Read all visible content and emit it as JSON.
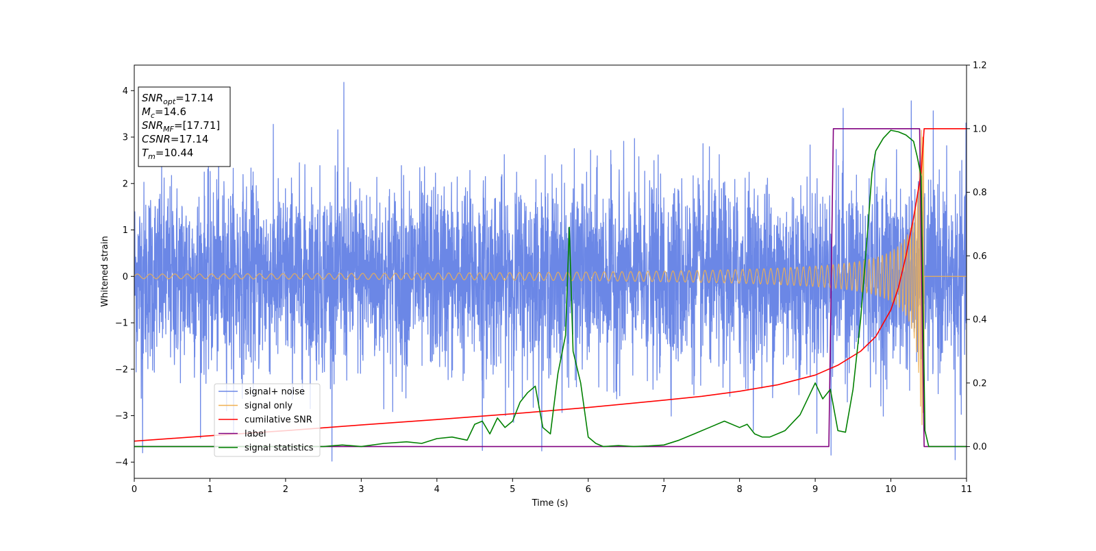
{
  "chart_data": {
    "type": "line",
    "title": "",
    "xlabel": "Time (s)",
    "ylabel": "Whitened strain",
    "xlim": [
      0,
      11
    ],
    "ylim": [
      -4.35,
      4.55
    ],
    "ylim_right": [
      -0.1,
      1.2
    ],
    "x_ticks": [
      0,
      1,
      2,
      3,
      4,
      5,
      6,
      7,
      8,
      9,
      10,
      11
    ],
    "x_tick_labels": [
      "0",
      "1",
      "2",
      "3",
      "4",
      "5",
      "6",
      "7",
      "8",
      "9",
      "10",
      "11"
    ],
    "y_ticks": [
      -4,
      -3,
      -2,
      -1,
      0,
      1,
      2,
      3,
      4
    ],
    "y_tick_labels": [
      "−4",
      "−3",
      "−2",
      "−1",
      "0",
      "1",
      "2",
      "3",
      "4"
    ],
    "y_ticks_right": [
      0.0,
      0.2,
      0.4,
      0.6,
      0.8,
      1.0,
      1.2
    ],
    "y_tick_labels_right": [
      "0.0",
      "0.2",
      "0.4",
      "0.6",
      "0.8",
      "1.0",
      "1.2"
    ],
    "grid": false,
    "legend_position": "lower-left",
    "series": [
      {
        "name": "signal+ noise",
        "axis": "left",
        "color": "#6b87e6",
        "generated": "white-noise",
        "std": 1.0,
        "peaks": [
          {
            "x": 2.77,
            "y": 4.18
          },
          {
            "x": 10.27,
            "y": 3.78
          },
          {
            "x": 9.37,
            "y": 3.62
          },
          {
            "x": 0.11,
            "y": -3.8
          },
          {
            "x": 10.85,
            "y": -3.95
          },
          {
            "x": 9.21,
            "y": -3.85
          },
          {
            "x": 4.6,
            "y": -3.75
          }
        ]
      },
      {
        "name": "signal only",
        "axis": "left",
        "color": "#f0b050",
        "generated": "chirp",
        "merger_time": 10.44,
        "amplitude_start": 0.05,
        "amplitude_peak": 3.2
      },
      {
        "name": "cumilative SNR",
        "axis": "right",
        "color": "#ff0000",
        "x": [
          0,
          1,
          2,
          3,
          4,
          5,
          6,
          7,
          7.5,
          8,
          8.5,
          9,
          9.3,
          9.6,
          9.8,
          10,
          10.1,
          10.2,
          10.3,
          10.4,
          10.44,
          11
        ],
        "y": [
          0.017,
          0.034,
          0.05,
          0.068,
          0.085,
          0.103,
          0.123,
          0.146,
          0.158,
          0.174,
          0.194,
          0.225,
          0.256,
          0.3,
          0.346,
          0.43,
          0.5,
          0.6,
          0.72,
          0.86,
          1.0,
          1.0
        ]
      },
      {
        "name": "label",
        "axis": "right",
        "color": "#800080",
        "x": [
          0,
          9.18,
          9.24,
          10.38,
          10.44,
          11
        ],
        "y": [
          0.0,
          0.0,
          1.0,
          1.0,
          0.0,
          0.0
        ]
      },
      {
        "name": "signal statistics",
        "axis": "right",
        "color": "#008000",
        "x": [
          0,
          1,
          2,
          2.5,
          2.75,
          3,
          3.3,
          3.6,
          3.8,
          4,
          4.2,
          4.4,
          4.5,
          4.6,
          4.7,
          4.8,
          4.9,
          5,
          5.1,
          5.2,
          5.3,
          5.4,
          5.5,
          5.6,
          5.7,
          5.75,
          5.8,
          5.9,
          6,
          6.1,
          6.2,
          6.4,
          6.6,
          6.8,
          7,
          7.2,
          7.4,
          7.6,
          7.8,
          8,
          8.1,
          8.2,
          8.3,
          8.4,
          8.6,
          8.8,
          9,
          9.1,
          9.2,
          9.3,
          9.4,
          9.5,
          9.6,
          9.7,
          9.75,
          9.8,
          9.9,
          10,
          10.1,
          10.2,
          10.3,
          10.35,
          10.4,
          10.45,
          10.5,
          10.7,
          11
        ],
        "y": [
          0.0,
          0.0,
          0.0,
          0.0,
          0.005,
          0.0,
          0.01,
          0.015,
          0.01,
          0.025,
          0.03,
          0.02,
          0.07,
          0.08,
          0.04,
          0.09,
          0.06,
          0.08,
          0.14,
          0.17,
          0.19,
          0.06,
          0.04,
          0.23,
          0.35,
          0.69,
          0.3,
          0.2,
          0.03,
          0.01,
          0.0,
          0.003,
          0.0,
          0.002,
          0.005,
          0.02,
          0.04,
          0.06,
          0.08,
          0.06,
          0.07,
          0.04,
          0.03,
          0.03,
          0.05,
          0.1,
          0.2,
          0.15,
          0.18,
          0.05,
          0.045,
          0.18,
          0.4,
          0.7,
          0.86,
          0.93,
          0.97,
          0.995,
          0.99,
          0.98,
          0.96,
          0.91,
          0.85,
          0.05,
          0.0,
          0.0,
          0.0
        ]
      }
    ]
  },
  "info_box": {
    "lines": [
      {
        "var": "SNR",
        "sub": "opt",
        "value": "=17.14"
      },
      {
        "var": "M",
        "sub": "c",
        "value": "=14.6"
      },
      {
        "var": "SNR",
        "sub": "MF",
        "value": "=[17.71]"
      },
      {
        "var": "CSNR",
        "sub": "",
        "value": "=17.14"
      },
      {
        "var": "T",
        "sub": "m",
        "value": "=10.44"
      }
    ]
  }
}
